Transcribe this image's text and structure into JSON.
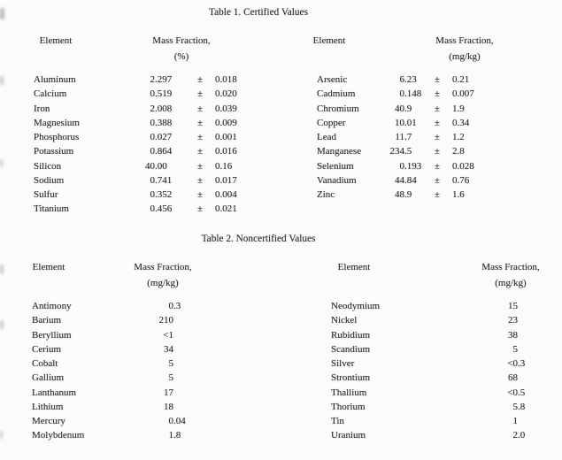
{
  "table1": {
    "title": "Table 1. Certified Values",
    "pm": "±",
    "headers": {
      "left": {
        "element": "Element",
        "mass_fraction": "Mass Fraction,",
        "unit": "(%)"
      },
      "right": {
        "element": "Element",
        "mass_fraction": "Mass Fraction,",
        "unit": "(mg/kg)"
      }
    },
    "left_rows": [
      {
        "element": "Aluminum",
        "value": "2.297",
        "uncertainty": "0.018"
      },
      {
        "element": "Calcium",
        "value": "0.519",
        "uncertainty": "0.020"
      },
      {
        "element": "Iron",
        "value": "2.008",
        "uncertainty": "0.039"
      },
      {
        "element": "Magnesium",
        "value": "0.388",
        "uncertainty": "0.009"
      },
      {
        "element": "Phosphorus",
        "value": "0.027",
        "uncertainty": "0.001"
      },
      {
        "element": "Potassium",
        "value": "0.864",
        "uncertainty": "0.016"
      },
      {
        "element": "Silicon",
        "value": "40.00",
        "uncertainty": "0.16"
      },
      {
        "element": "Sodium",
        "value": "0.741",
        "uncertainty": "0.017"
      },
      {
        "element": "Sulfur",
        "value": "0.352",
        "uncertainty": "0.004"
      },
      {
        "element": "Titanium",
        "value": "0.456",
        "uncertainty": "0.021"
      }
    ],
    "right_rows": [
      {
        "element": "Arsenic",
        "value": "6.23",
        "uncertainty": "0.21"
      },
      {
        "element": "Cadmium",
        "value": "0.148",
        "uncertainty": "0.007"
      },
      {
        "element": "Chromium",
        "value": "40.9",
        "uncertainty": "1.9"
      },
      {
        "element": "Copper",
        "value": "10.01",
        "uncertainty": "0.34"
      },
      {
        "element": "Lead",
        "value": "11.7",
        "uncertainty": "1.2"
      },
      {
        "element": "Manganese",
        "value": "234.5",
        "uncertainty": "2.8"
      },
      {
        "element": "Selenium",
        "value": "0.193",
        "uncertainty": "0.028"
      },
      {
        "element": "Vanadium",
        "value": "44.84",
        "uncertainty": "0.76"
      },
      {
        "element": "Zinc",
        "value": "48.9",
        "uncertainty": "1.6"
      }
    ]
  },
  "table2": {
    "title": "Table 2. Noncertified Values",
    "headers": {
      "left": {
        "element": "Element",
        "mass_fraction": "Mass Fraction,",
        "unit": "(mg/kg)"
      },
      "right": {
        "element": "Element",
        "mass_fraction": "Mass Fraction,",
        "unit": "(mg/kg)"
      }
    },
    "left_rows": [
      {
        "element": "Antimony",
        "value": "0.3"
      },
      {
        "element": "Barium",
        "value": "210"
      },
      {
        "element": "Beryllium",
        "value": "<1"
      },
      {
        "element": "Cerium",
        "value": "34"
      },
      {
        "element": "Cobalt",
        "value": "5"
      },
      {
        "element": "Gallium",
        "value": "5"
      },
      {
        "element": "Lanthanum",
        "value": "17"
      },
      {
        "element": "Lithium",
        "value": "18"
      },
      {
        "element": "Mercury",
        "value": "0.04"
      },
      {
        "element": "Molybdenum",
        "value": "1.8"
      }
    ],
    "right_rows": [
      {
        "element": "Neodymium",
        "value": "15"
      },
      {
        "element": "Nickel",
        "value": "23"
      },
      {
        "element": "Rubidium",
        "value": "38"
      },
      {
        "element": "Scandium",
        "value": "5"
      },
      {
        "element": "Silver",
        "value": "<0.3"
      },
      {
        "element": "Strontium",
        "value": "68"
      },
      {
        "element": "Thallium",
        "value": "<0.5"
      },
      {
        "element": "Thorium",
        "value": "5.8"
      },
      {
        "element": "Tin",
        "value": "1"
      },
      {
        "element": "Uranium",
        "value": "2.0"
      }
    ]
  }
}
